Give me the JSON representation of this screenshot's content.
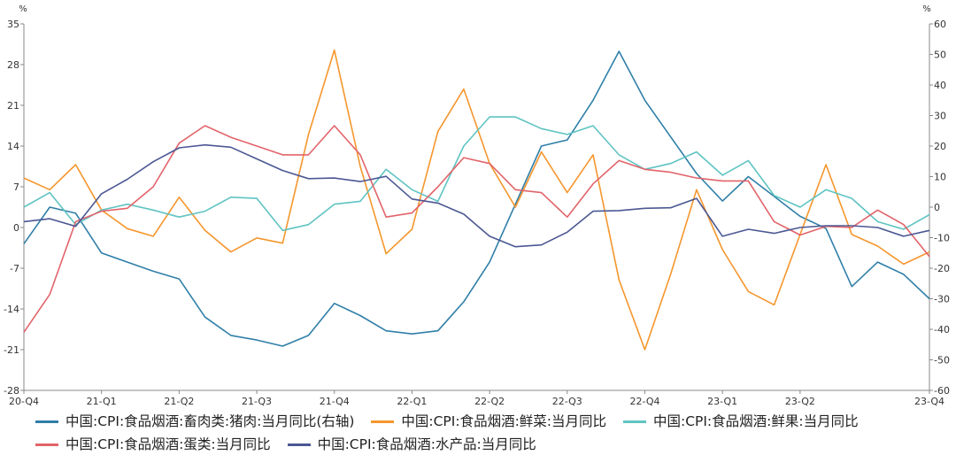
{
  "chart_data": {
    "type": "line",
    "left_unit": "%",
    "right_unit": "%",
    "y_left": {
      "min": -28,
      "max": 35,
      "ticks": [
        35,
        28,
        21,
        14,
        7,
        0,
        -7,
        -14,
        -21,
        -28
      ]
    },
    "y_right": {
      "min": -60,
      "max": 60,
      "ticks": [
        60,
        50,
        40,
        30,
        20,
        10,
        0,
        -10,
        -20,
        -30,
        -40,
        -50,
        -60
      ]
    },
    "x_tick_labels": [
      "20-Q4",
      "21-Q1",
      "21-Q2",
      "21-Q3",
      "21-Q4",
      "22-Q1",
      "22-Q2",
      "22-Q3",
      "22-Q4",
      "23-Q1",
      "23-Q2",
      "23-Q4"
    ],
    "x_tick_index": [
      0,
      3,
      6,
      9,
      12,
      15,
      18,
      21,
      24,
      27,
      30,
      35
    ],
    "point_count": 36,
    "grid": false,
    "legend_position": "bottom",
    "series": [
      {
        "name": "中国:CPI:食品烟酒:畜肉类:猪肉:当月同比(右轴)",
        "axis": "right",
        "color": "#2f7fa8",
        "values": [
          -12,
          0,
          -2,
          -15,
          -18,
          -21,
          -23.5,
          -36,
          -42,
          -43.5,
          -45.5,
          -42,
          -31.5,
          -35.5,
          -40.5,
          -41.5,
          -40.5,
          -31,
          -18,
          1,
          20,
          22,
          35,
          51,
          35,
          23,
          11,
          2,
          10,
          3.5,
          -3,
          -7,
          -26,
          -18,
          -22,
          -30
        ]
      },
      {
        "name": "中国:CPI:食品烟酒:鲜菜:当月同比",
        "axis": "left",
        "color": "#f5962d",
        "values": [
          8.5,
          6.5,
          10.8,
          3,
          -0.2,
          -1.5,
          5.2,
          -0.5,
          -4.2,
          -1.8,
          -2.7,
          16,
          30.5,
          10.5,
          -4.5,
          -0.3,
          16.5,
          23.8,
          11,
          3.5,
          13,
          6,
          12.5,
          -9,
          -21,
          -8,
          6.5,
          -3.8,
          -11,
          -13.3,
          -1.2,
          10.8,
          -1.2,
          -3.2,
          -6.3,
          -4.2
        ]
      },
      {
        "name": "中国:CPI:食品烟酒:鲜果:当月同比",
        "axis": "left",
        "color": "#5fc4c2",
        "values": [
          3.5,
          6,
          0.5,
          3,
          4,
          3,
          1.8,
          2.8,
          5.2,
          5,
          -0.5,
          0.5,
          4,
          4.5,
          10,
          6.5,
          4.5,
          14,
          19,
          19,
          17,
          16,
          17.5,
          12.5,
          10,
          11,
          13,
          9,
          11.5,
          5.5,
          3.5,
          6.5,
          5,
          1,
          -0.3,
          2.2
        ]
      },
      {
        "name": "中国:CPI:食品烟酒:蛋类:当月同比",
        "axis": "left",
        "color": "#e2646a",
        "values": [
          -18,
          -11.5,
          1,
          2.8,
          3.3,
          7,
          14.5,
          17.5,
          15.5,
          14,
          12.5,
          12.5,
          17.5,
          12.5,
          1.8,
          2.5,
          7,
          12,
          11,
          6.5,
          6,
          1.8,
          7.5,
          11.5,
          10,
          9.5,
          8.5,
          8,
          8,
          1,
          -1.3,
          0.2,
          0,
          3,
          0.5,
          -5
        ]
      },
      {
        "name": "中国:CPI:食品烟酒:水产品:当月同比",
        "axis": "left",
        "color": "#4b5893",
        "values": [
          1,
          1.5,
          0.2,
          5.8,
          8.3,
          11.3,
          13.7,
          14.2,
          13.8,
          11.8,
          9.8,
          8.4,
          8.5,
          7.9,
          8.8,
          4.9,
          4.2,
          2.3,
          -1.5,
          -3.3,
          -3,
          -0.8,
          2.8,
          2.9,
          3.3,
          3.4,
          5,
          -1.5,
          -0.3,
          -1,
          0,
          0.3,
          0.3,
          0,
          -1.5,
          -0.5
        ]
      }
    ]
  }
}
